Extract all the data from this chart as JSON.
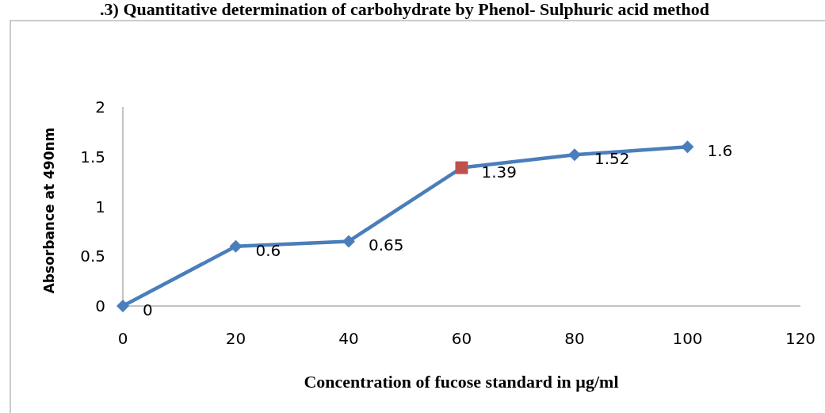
{
  "chart_data": {
    "type": "line",
    "title": ".3) Quantitative determination of carbohydrate by Phenol- Sulphuric acid method",
    "xlabel": "Concentration of fucose standard in µg/ml",
    "ylabel": "Absorbance at 490nm",
    "x": [
      0,
      20,
      40,
      60,
      80,
      100
    ],
    "series": [
      {
        "color": "#4a7ebb",
        "colors": [
          "#4a7ebb",
          "#4a7ebb",
          "#4a7ebb",
          "#c0504d",
          "#4a7ebb",
          "#4a7ebb"
        ],
        "values": [
          0,
          0.6,
          0.65,
          1.39,
          1.52,
          1.6
        ]
      }
    ],
    "xlim": [
      0,
      120
    ],
    "xticks": [
      0,
      20,
      40,
      60,
      80,
      100,
      120
    ],
    "ylim": [
      0,
      2
    ],
    "yticks": [
      0,
      0.5,
      1,
      1.5,
      2
    ],
    "marker": "diamond",
    "data_labels": true,
    "grid": false
  }
}
